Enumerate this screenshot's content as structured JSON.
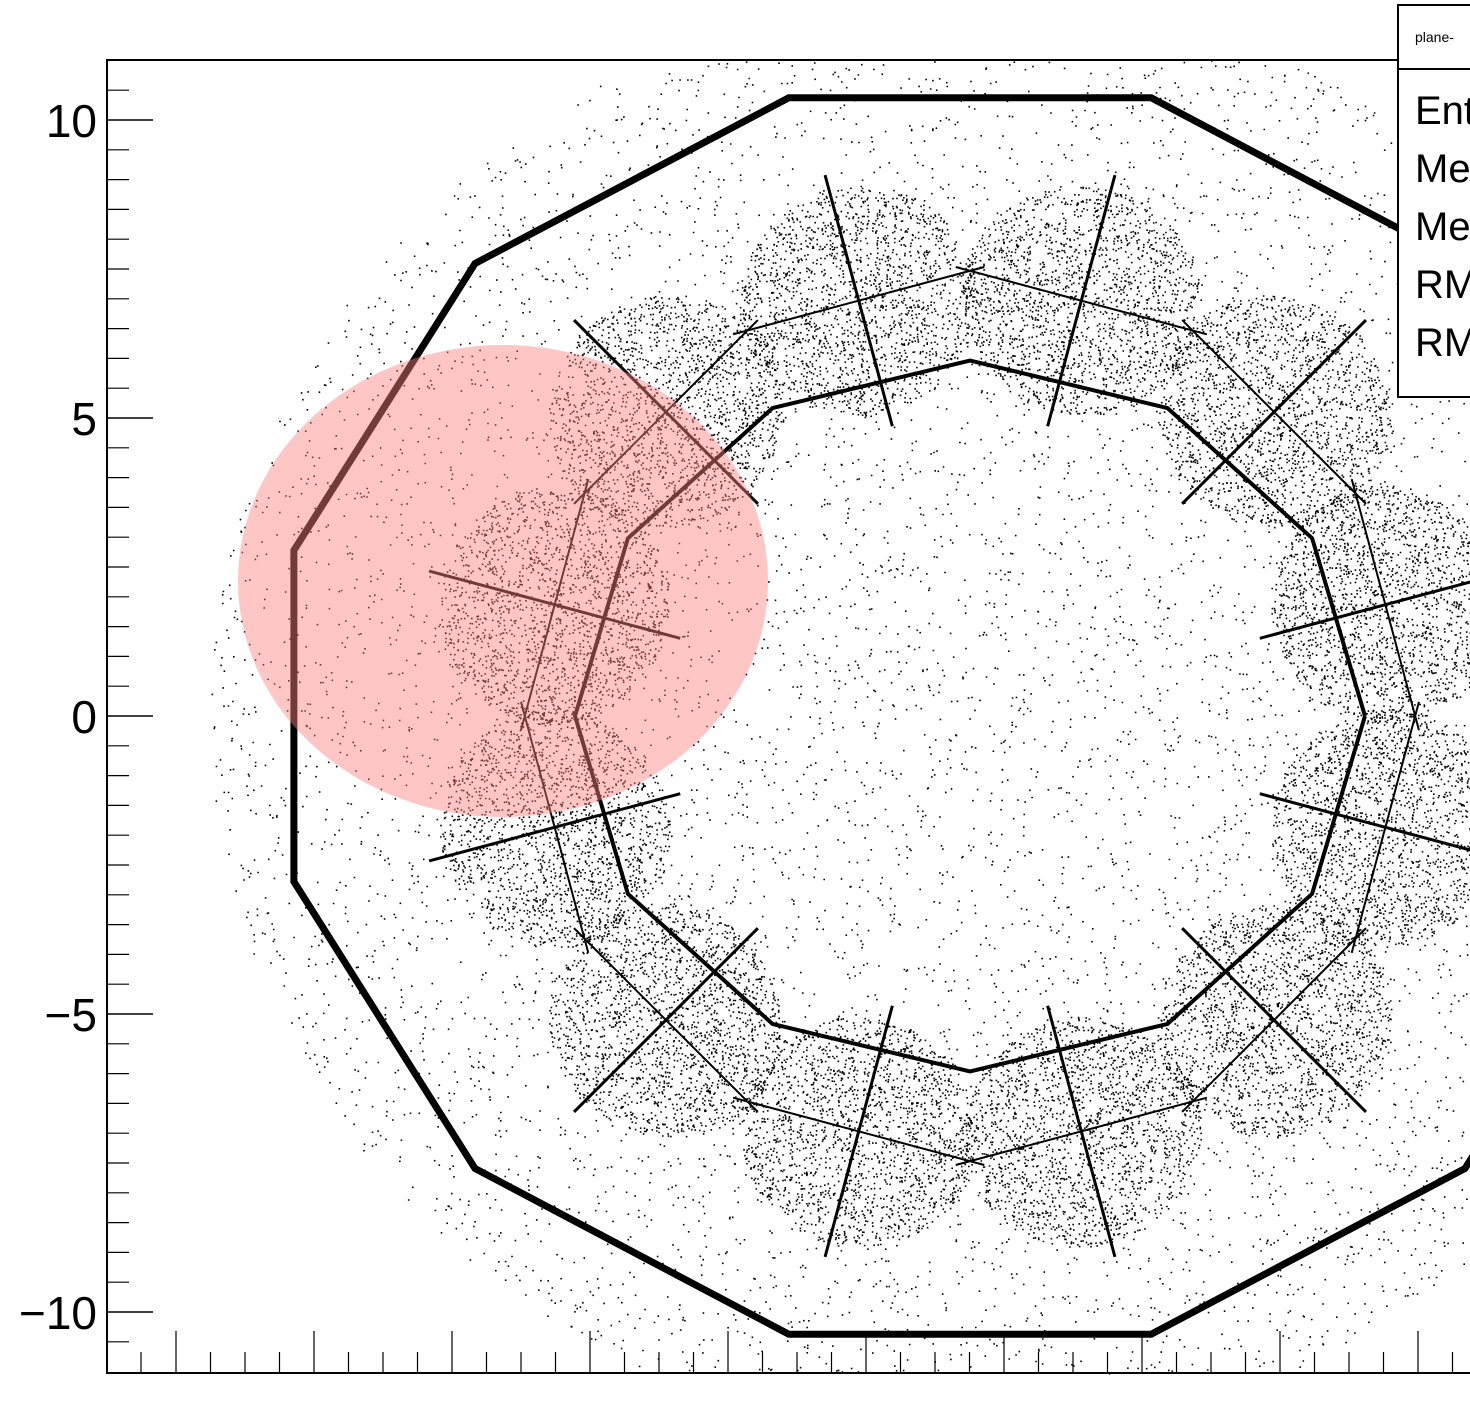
{
  "chart_data": {
    "type": "scatter",
    "title": "",
    "xlabel": "",
    "ylabel": "",
    "ylim": [
      -11,
      11
    ],
    "y_ticks": [
      10,
      5,
      0,
      -5,
      -10
    ],
    "y_tick_labels": [
      "10",
      "5",
      "0",
      "−5",
      "−10"
    ],
    "description_points": "dense scatter of hit positions forming a dodecagonal detector pattern",
    "highlight": {
      "shape": "ellipse",
      "color": "#ff8080",
      "opacity": 0.45,
      "center": [
        0,
        2.3
      ],
      "radius_x": 0,
      "radius_y": 3.95
    }
  },
  "stats": {
    "title": "plane-",
    "rows": [
      "Ent",
      "Me",
      "Me",
      "RM",
      "RM"
    ]
  },
  "colors": {
    "points": "#000000",
    "highlight": "#ff9999",
    "axis": "#000000",
    "background": "#ffffff"
  }
}
